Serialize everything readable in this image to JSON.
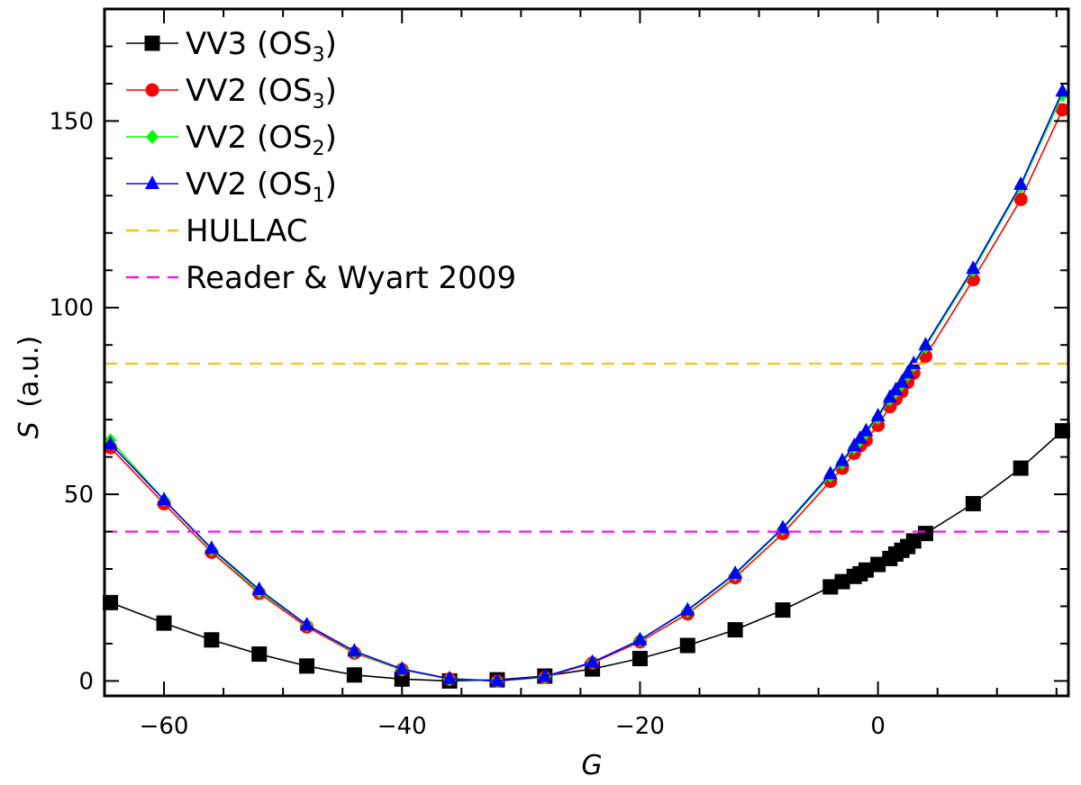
{
  "chart_data": {
    "type": "line",
    "xlabel": "G",
    "ylabel_symbol": "S",
    "ylabel_unit": "(a.u.)",
    "xlim": [
      -65,
      16
    ],
    "ylim": [
      -4,
      180
    ],
    "xticks": [
      -60,
      -40,
      -20,
      0
    ],
    "xtick_labels": [
      "−60",
      "−40",
      "−20",
      "0"
    ],
    "yticks": [
      0,
      50,
      100,
      150
    ],
    "ytick_labels": [
      "0",
      "50",
      "100",
      "150"
    ],
    "grid": false,
    "legend_position": "top-left",
    "series": [
      {
        "name": "VV3 (OS3)",
        "label_main": "VV3 (OS",
        "label_sub": "3",
        "label_end": ")",
        "color": "#000000",
        "marker": "square",
        "style": "solid",
        "x": [
          -64.5,
          -60,
          -56,
          -52,
          -48,
          -44,
          -40,
          -36,
          -32,
          -28,
          -24,
          -20,
          -16,
          -12,
          -8,
          -4,
          -3,
          -2,
          -1.5,
          -1,
          0,
          1,
          1.5,
          2,
          2.5,
          3,
          4,
          8,
          12,
          15.5
        ],
        "y": [
          21,
          15.5,
          11,
          7.2,
          4,
          1.6,
          0.5,
          0,
          0.3,
          1.3,
          3.2,
          6,
          9.5,
          13.7,
          19,
          25.2,
          26.6,
          28,
          28.7,
          29.7,
          31.2,
          32.8,
          34,
          35,
          36,
          37.5,
          39.5,
          47.5,
          57,
          67
        ]
      },
      {
        "name": "VV2 (OS3)",
        "label_main": "VV2 (OS",
        "label_sub": "3",
        "label_end": ")",
        "color": "#ff0000",
        "marker": "circle",
        "style": "solid",
        "x": [
          -64.5,
          -60,
          -56,
          -52,
          -48,
          -44,
          -40,
          -36,
          -32,
          -28,
          -24,
          -20,
          -16,
          -12,
          -8,
          -4,
          -3,
          -2,
          -1.5,
          -1,
          0,
          1,
          1.5,
          2,
          2.5,
          3,
          4,
          8,
          12,
          15.5
        ],
        "y": [
          62.5,
          47.5,
          34.5,
          23.5,
          14.5,
          7.5,
          3,
          0.5,
          0,
          1,
          4.8,
          10.5,
          18,
          27.7,
          39.5,
          53.5,
          57,
          61,
          63,
          64.5,
          68.5,
          73.5,
          75.5,
          77.5,
          80,
          82.5,
          87,
          107.5,
          129,
          153
        ]
      },
      {
        "name": "VV2 (OS2)",
        "label_main": "VV2 (OS",
        "label_sub": "2",
        "label_end": ")",
        "color": "#00ff00",
        "marker": "diamond",
        "style": "solid",
        "x": [
          -64.5,
          -60,
          -56,
          -52,
          -48,
          -44,
          -40,
          -36,
          -32,
          -28,
          -24,
          -20,
          -16,
          -12,
          -8,
          -4,
          -3,
          -2,
          -1.5,
          -1,
          0,
          1,
          1.5,
          2,
          2.5,
          3,
          4,
          8,
          12,
          15.5
        ],
        "y": [
          64.5,
          48.5,
          35.2,
          24,
          15,
          7.8,
          3.1,
          0.5,
          0,
          1.1,
          5,
          11,
          18.8,
          28.5,
          40.7,
          55,
          58.5,
          62.5,
          64.5,
          66.5,
          70.5,
          75.5,
          77.5,
          79.5,
          82,
          84.5,
          89.5,
          110,
          132.5,
          157
        ]
      },
      {
        "name": "VV2 (OS1)",
        "label_main": "VV2 (OS",
        "label_sub": "1",
        "label_end": ")",
        "color": "#0000ff",
        "marker": "triangle",
        "style": "solid",
        "x": [
          -64.5,
          -60,
          -56,
          -52,
          -48,
          -44,
          -40,
          -36,
          -32,
          -28,
          -24,
          -20,
          -16,
          -12,
          -8,
          -4,
          -3,
          -2,
          -1.5,
          -1,
          0,
          1,
          1.5,
          2,
          2.5,
          3,
          4,
          8,
          12,
          15.5
        ],
        "y": [
          63.5,
          48.5,
          35.5,
          24.5,
          15,
          8,
          3.2,
          0.6,
          0,
          1.2,
          5,
          11,
          19,
          28.8,
          41,
          55.5,
          59,
          63,
          65,
          67,
          71,
          76,
          78,
          80,
          82.5,
          85,
          90,
          110.5,
          133,
          158
        ]
      },
      {
        "name": "HULLAC",
        "label_main": "HULLAC",
        "color": "#ffc000",
        "marker": "none",
        "style": "dashed",
        "y_const": 85
      },
      {
        "name": "Reader & Wyart 2009",
        "label_main": "Reader & Wyart 2009",
        "color": "#ff00ff",
        "marker": "none",
        "style": "dashed",
        "y_const": 40
      }
    ]
  }
}
